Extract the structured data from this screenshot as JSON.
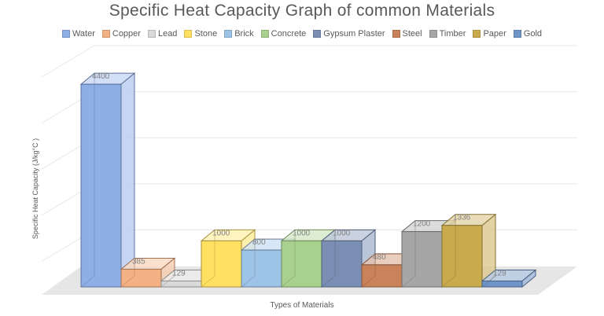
{
  "chart_data": {
    "type": "bar",
    "title": "Specific Heat Capacity Graph of common Materials",
    "xlabel": "Types of Materials",
    "ylabel": "Specific Heat Capacity (J/kg°C )",
    "ylim": [
      0,
      5000
    ],
    "grid": true,
    "legend_position": "top",
    "series": [
      {
        "name": "Water",
        "value": 4400,
        "label": "4400",
        "color": "#8eaee8"
      },
      {
        "name": "Copper",
        "value": 385,
        "label": "385",
        "color": "#f4b183"
      },
      {
        "name": "Lead",
        "value": 129,
        "label": "129",
        "color": "#d9d9d9"
      },
      {
        "name": "Stone",
        "value": 1000,
        "label": "1000",
        "color": "#ffe060"
      },
      {
        "name": "Brick",
        "value": 800,
        "label": "800",
        "color": "#9dc3e6"
      },
      {
        "name": "Concrete",
        "value": 1000,
        "label": "1000",
        "color": "#a9d18e"
      },
      {
        "name": "Gypsum Plaster",
        "value": 1000,
        "label": "1000",
        "color": "#7b8fb5"
      },
      {
        "name": "Steel",
        "value": 480,
        "label": "480",
        "color": "#c9825a"
      },
      {
        "name": "Timber",
        "value": 1200,
        "label": "1200",
        "color": "#a6a6a6"
      },
      {
        "name": "Paper",
        "value": 1336,
        "label": "1336",
        "color": "#c9ab4e"
      },
      {
        "name": "Gold",
        "value": 129,
        "label": "129",
        "color": "#6f94c7"
      }
    ]
  }
}
